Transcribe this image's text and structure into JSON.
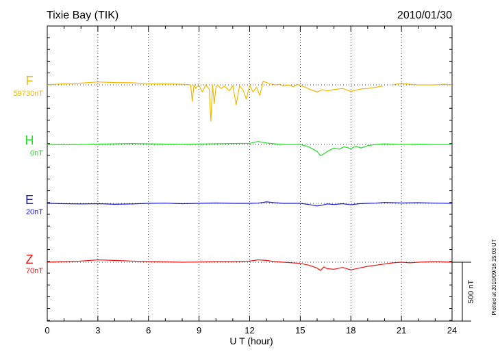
{
  "chart_data": {
    "type": "line",
    "title": "Tixie Bay (TIK)",
    "date": "2010/01/30",
    "xlabel": "U T (hour)",
    "xlim": [
      0,
      24
    ],
    "xticks": [
      "0",
      "3",
      "6",
      "9",
      "12",
      "15",
      "18",
      "21",
      "24"
    ],
    "scale_bar_label": "500 nT",
    "scale_bar_nT": 500,
    "footer": "Plotted at 2010/09/16 15:03 UT",
    "grid": true,
    "series": [
      {
        "name": "F",
        "baseline": "59730nT",
        "color": "#f5b800",
        "x": [
          0,
          1,
          2,
          3,
          4,
          5,
          6,
          7,
          8,
          8.5,
          8.6,
          8.7,
          8.8,
          8.9,
          9.0,
          9.2,
          9.4,
          9.6,
          9.7,
          9.8,
          9.9,
          10.0,
          10.1,
          10.3,
          10.5,
          10.8,
          11.0,
          11.2,
          11.4,
          11.6,
          11.8,
          12.0,
          12.2,
          12.4,
          12.6,
          12.8,
          13.0,
          13.2,
          13.5,
          13.8,
          14.0,
          14.3,
          14.6,
          14.8,
          15.0,
          15.3,
          15.6,
          16.0,
          16.3,
          16.6,
          17.0,
          17.5,
          18.0,
          18.3,
          18.6,
          19.0,
          19.5,
          19.9,
          20.0,
          20.5,
          21.0,
          21.5,
          22.0,
          22.5,
          23.0,
          23.5,
          24.0
        ],
        "values": [
          0,
          10,
          15,
          25,
          20,
          18,
          10,
          8,
          5,
          0,
          -140,
          0,
          -30,
          -10,
          -5,
          -60,
          0,
          -35,
          -310,
          0,
          -160,
          -20,
          0,
          -30,
          -10,
          -50,
          -5,
          -170,
          -10,
          -40,
          -120,
          -5,
          -60,
          -20,
          -90,
          30,
          20,
          10,
          0,
          5,
          -10,
          0,
          -15,
          5,
          -5,
          -20,
          -40,
          -60,
          -40,
          -50,
          -40,
          -30,
          -55,
          -45,
          -35,
          -30,
          -20,
          -10,
          null,
          0,
          15,
          5,
          0,
          0,
          0,
          5,
          0
        ]
      },
      {
        "name": "H",
        "baseline": "0nT",
        "color": "#22dd22",
        "x": [
          0,
          1,
          2,
          3,
          4,
          5,
          6,
          7,
          8,
          9,
          10,
          11,
          12,
          12.5,
          13.0,
          13.5,
          14,
          15,
          15.5,
          16.0,
          16.2,
          16.4,
          16.6,
          17.0,
          17.3,
          17.6,
          18.0,
          18.3,
          18.6,
          19.0,
          19.5,
          20.0,
          21.0,
          22.0,
          23.0,
          24.0
        ],
        "values": [
          0,
          -3,
          0,
          3,
          5,
          8,
          5,
          3,
          2,
          4,
          6,
          8,
          10,
          25,
          12,
          5,
          0,
          0,
          -20,
          -60,
          -95,
          -80,
          -60,
          -30,
          -40,
          -20,
          -35,
          -15,
          -30,
          -10,
          0,
          5,
          0,
          3,
          0,
          0
        ]
      },
      {
        "name": "E",
        "baseline": "20nT",
        "color": "#1a1ad0",
        "x": [
          0,
          1,
          2,
          3,
          4,
          5,
          6,
          7,
          8,
          9,
          10,
          11,
          12,
          12.5,
          13.0,
          13.5,
          14,
          15,
          15.5,
          16.0,
          16.3,
          16.6,
          17.0,
          17.5,
          18.0,
          18.5,
          19.0,
          19.5,
          20.0,
          21.0,
          22.0,
          23.0,
          24.0
        ],
        "values": [
          0,
          -3,
          -5,
          -3,
          -8,
          -5,
          0,
          2,
          -3,
          0,
          3,
          0,
          0,
          2,
          12,
          5,
          0,
          0,
          -10,
          -22,
          -15,
          -5,
          -10,
          -3,
          -12,
          -3,
          0,
          2,
          8,
          3,
          5,
          2,
          0
        ]
      },
      {
        "name": "Z",
        "baseline": "70nT",
        "color": "#ee1111",
        "x": [
          0,
          1,
          2,
          3,
          4,
          5,
          6,
          7,
          8,
          9,
          10,
          11,
          12,
          12.5,
          13.0,
          13.5,
          14,
          15,
          15.5,
          16.0,
          16.2,
          16.4,
          16.6,
          17.0,
          17.5,
          18.0,
          18.5,
          19.0,
          19.5,
          20.0,
          20.5,
          21.0,
          21.5,
          22.0,
          23.0,
          24.0
        ],
        "values": [
          0,
          5,
          10,
          20,
          15,
          10,
          5,
          3,
          0,
          2,
          5,
          5,
          10,
          20,
          15,
          5,
          0,
          -10,
          -25,
          -50,
          -70,
          -40,
          -55,
          -60,
          -45,
          -65,
          -50,
          -35,
          -25,
          -15,
          -5,
          0,
          -5,
          0,
          5,
          0
        ]
      }
    ]
  }
}
